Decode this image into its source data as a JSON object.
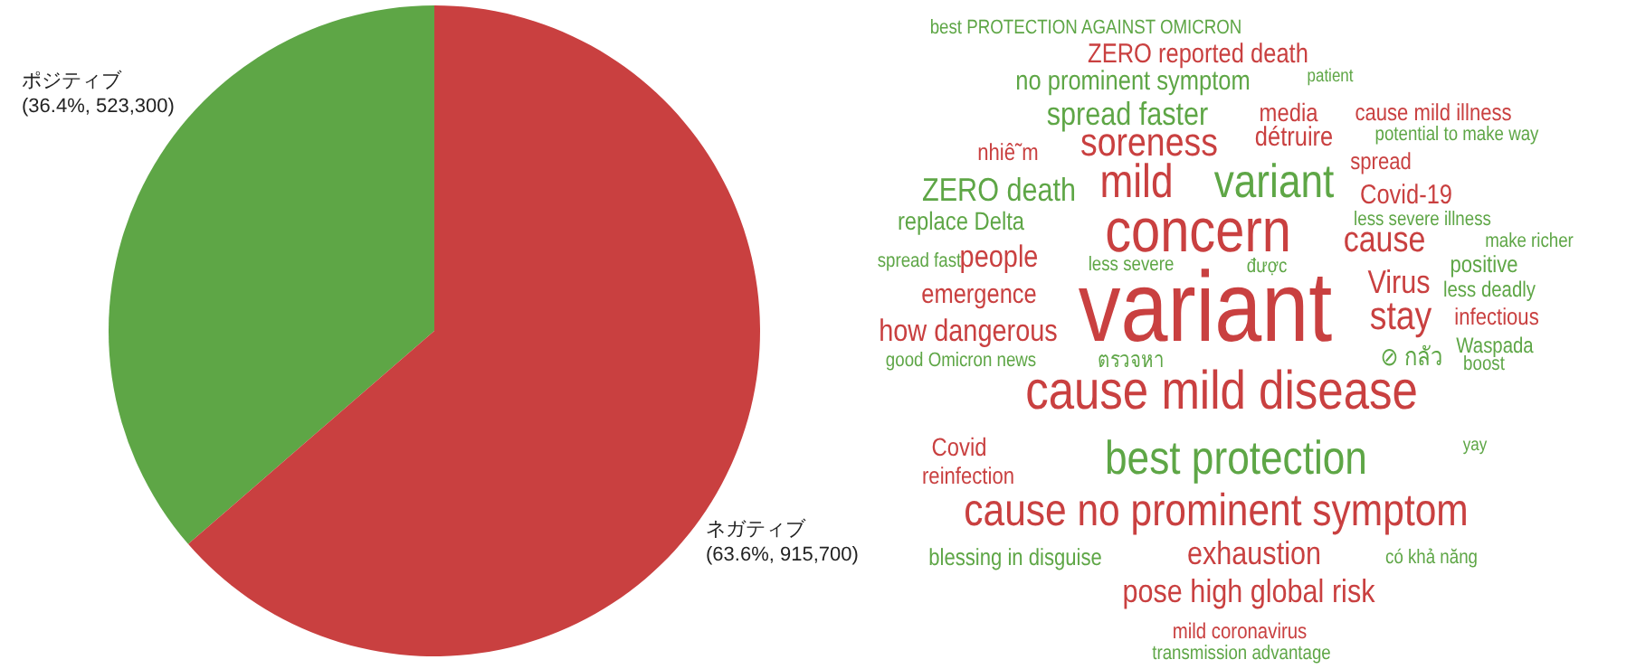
{
  "chart_data": [
    {
      "type": "pie",
      "categories": [
        "ポジティブ",
        "ネガティブ"
      ],
      "values": [
        523300,
        915700
      ],
      "colors": [
        "#5ea646",
        "#c94040"
      ],
      "value_labels": [
        "(36.4%, 523,300)",
        "(63.6%, 915,700)"
      ]
    },
    {
      "type": "other",
      "categories": [
        "best PROTECTION AGAINST OMICRON",
        "ZERO reported death",
        "no prominent symptom",
        "patient",
        "spread faster",
        "media",
        "cause mild illness",
        "soreness",
        "détruire",
        "potential to make way",
        "nhiê˜m",
        "spread",
        "ZERO death",
        "mild",
        "variant",
        "Covid-19",
        "replace Delta",
        "less severe illness",
        "concern",
        "cause",
        "make richer",
        "spread fast",
        "people",
        "less severe",
        "được",
        "positive",
        "Virus",
        "variant",
        "emergence",
        "less deadly",
        "stay",
        "infectious",
        "how dangerous",
        "Waspada",
        "good Omicron news",
        "ตรวจหา",
        "⊘ กลัว",
        "boost",
        "cause mild disease",
        "Covid",
        "reinfection",
        "best protection",
        "yay",
        "cause no prominent symptom",
        "blessing in disguise",
        "exhaustion",
        "có khả năng",
        "pose high global risk",
        "mild coronavirus",
        "transmission advantage"
      ],
      "colors": [
        "#5ea646",
        "#c94040",
        "#5ea646",
        "#5ea646",
        "#5ea646",
        "#c94040",
        "#c94040",
        "#c94040",
        "#c94040",
        "#5ea646",
        "#c94040",
        "#c94040",
        "#5ea646",
        "#c94040",
        "#5ea646",
        "#c94040",
        "#5ea646",
        "#5ea646",
        "#c94040",
        "#c94040",
        "#5ea646",
        "#5ea646",
        "#c94040",
        "#5ea646",
        "#5ea646",
        "#5ea646",
        "#c94040",
        "#c94040",
        "#c94040",
        "#5ea646",
        "#c94040",
        "#c94040",
        "#c94040",
        "#5ea646",
        "#5ea646",
        "#5ea646",
        "#5ea646",
        "#5ea646",
        "#c94040",
        "#c94040",
        "#c94040",
        "#5ea646",
        "#5ea646",
        "#c94040",
        "#5ea646",
        "#c94040",
        "#5ea646",
        "#c94040",
        "#c94040",
        "#5ea646"
      ]
    }
  ]
}
